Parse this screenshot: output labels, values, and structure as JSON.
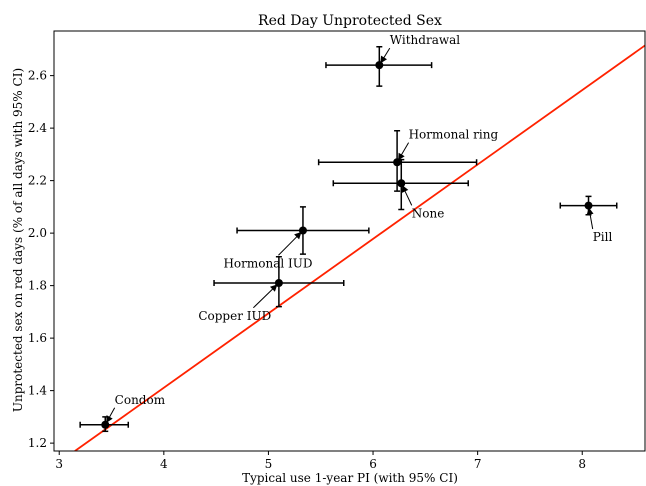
{
  "chart_data": {
    "type": "scatter",
    "title": "Red Day Unprotected Sex",
    "xlabel": "Typical use 1-year PI (with 95% CI)",
    "ylabel": "Unprotected sex on red days (% of all days with 95% CI)",
    "xlim": [
      2.95,
      8.6
    ],
    "ylim": [
      1.17,
      2.77
    ],
    "xticks": [
      3,
      4,
      5,
      6,
      7,
      8
    ],
    "yticks": [
      1.2,
      1.4,
      1.6,
      1.8,
      2.0,
      2.2,
      2.4,
      2.6
    ],
    "xtick_labels": [
      "3",
      "4",
      "5",
      "6",
      "7",
      "8"
    ],
    "ytick_labels": [
      "1.2",
      "1.4",
      "1.6",
      "1.8",
      "2.0",
      "2.2",
      "2.4",
      "2.6"
    ],
    "grid": false,
    "points": [
      {
        "label": "Condom",
        "x": 3.44,
        "y": 1.27,
        "xerr": [
          3.2,
          3.66
        ],
        "yerr": [
          1.245,
          1.3
        ]
      },
      {
        "label": "Copper IUD",
        "x": 5.1,
        "y": 1.81,
        "xerr": [
          4.48,
          5.72
        ],
        "yerr": [
          1.72,
          1.91
        ]
      },
      {
        "label": "Hormonal IUD",
        "x": 5.33,
        "y": 2.01,
        "xerr": [
          4.7,
          5.96
        ],
        "yerr": [
          1.92,
          2.1
        ]
      },
      {
        "label": "Hormonal ring",
        "x": 6.23,
        "y": 2.27,
        "xerr": [
          5.48,
          6.99
        ],
        "yerr": [
          2.16,
          2.39
        ]
      },
      {
        "label": "None",
        "x": 6.27,
        "y": 2.19,
        "xerr": [
          5.62,
          6.91
        ],
        "yerr": [
          2.09,
          2.28
        ]
      },
      {
        "label": "Withdrawal",
        "x": 6.06,
        "y": 2.64,
        "xerr": [
          5.55,
          6.56
        ],
        "yerr": [
          2.56,
          2.71
        ]
      },
      {
        "label": "Pill",
        "x": 8.06,
        "y": 2.105,
        "xerr": [
          7.79,
          8.33
        ],
        "yerr": [
          2.07,
          2.14
        ]
      }
    ],
    "annotation_text_positions": [
      {
        "label": "Condom",
        "tx": 3.53,
        "ty": 1.35
      },
      {
        "label": "Copper IUD",
        "tx": 4.33,
        "ty": 1.67
      },
      {
        "label": "Hormonal IUD",
        "tx": 4.57,
        "ty": 1.87
      },
      {
        "label": "Hormonal ring",
        "tx": 6.34,
        "ty": 2.36
      },
      {
        "label": "None",
        "tx": 6.37,
        "ty": 2.06
      },
      {
        "label": "Withdrawal",
        "tx": 6.16,
        "ty": 2.72
      },
      {
        "label": "Pill",
        "tx": 8.1,
        "ty": 1.97
      }
    ],
    "fit_line": {
      "x": [
        3.15,
        8.6
      ],
      "y": [
        1.17,
        2.715
      ],
      "color": "#ff2200"
    },
    "colors": {
      "points": "#000000",
      "fit_line": "#ff2200",
      "axes": "#000000"
    }
  }
}
